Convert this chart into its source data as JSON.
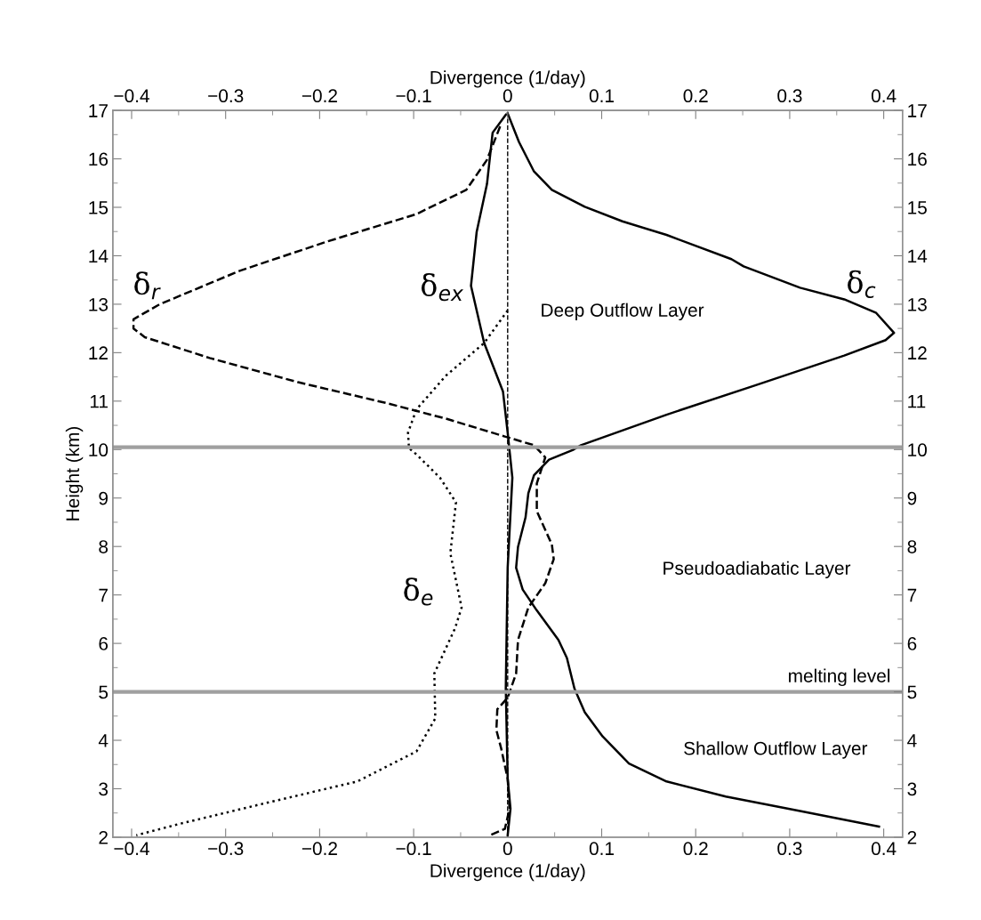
{
  "chart_data": {
    "type": "line",
    "xlabel": "Divergence (1/day)",
    "x2label": "Divergence (1/day)",
    "ylabel": "Height (km)",
    "xlim": [
      -0.42,
      0.42
    ],
    "xticks": [
      {
        "value": -0.4,
        "label": "−0.4"
      },
      {
        "value": -0.3,
        "label": "−0.3"
      },
      {
        "value": -0.2,
        "label": "−0.2"
      },
      {
        "value": -0.1,
        "label": "−0.1"
      },
      0,
      0.1,
      0.2,
      0.3,
      0.4
    ],
    "x2lim": [
      -0.42,
      0.42
    ],
    "x2ticks": [
      {
        "value": -0.4,
        "label": "−0.4"
      },
      {
        "value": -0.3,
        "label": "−0.3"
      },
      {
        "value": -0.2,
        "label": "−0.2"
      },
      {
        "value": -0.1,
        "label": "−0.1"
      },
      0,
      0.1,
      0.2,
      0.3,
      0.4
    ],
    "ylim": [
      2,
      17
    ],
    "yticks": [
      2,
      3,
      4,
      5,
      6,
      7,
      8,
      9,
      10,
      11,
      12,
      13,
      14,
      15,
      16,
      17
    ],
    "y2lim": [
      2,
      17
    ],
    "y2ticks": [
      2,
      3,
      4,
      5,
      6,
      7,
      8,
      9,
      10,
      11,
      12,
      13,
      14,
      15,
      16,
      17
    ],
    "grid": false,
    "legend": false,
    "series": [
      {
        "color": "#000000",
        "line_style": "solid",
        "x": [
          0,
          0.012,
          0.028,
          0.047,
          0.082,
          0.122,
          0.169,
          0.238,
          0.251,
          0.311,
          0.358,
          0.392,
          0.411,
          0.402,
          0.358,
          0.264,
          0.169,
          0.078,
          0.069,
          0.044,
          0.028,
          0.022,
          0.019,
          0.011,
          0.009,
          0.016,
          0.031,
          0.054,
          0.063,
          0.071,
          0.082,
          0.101,
          0.129,
          0.169,
          0.232,
          0.311,
          0.395
        ],
        "values": [
          16.94,
          16.35,
          15.74,
          15.36,
          15.01,
          14.71,
          14.43,
          13.93,
          13.78,
          13.34,
          13.1,
          12.82,
          12.41,
          12.26,
          11.94,
          11.33,
          10.72,
          10.09,
          9.99,
          9.79,
          9.47,
          9.1,
          8.6,
          7.99,
          7.56,
          7.11,
          6.68,
          6.07,
          5.7,
          5.07,
          4.58,
          4.08,
          3.52,
          3.15,
          2.84,
          2.54,
          2.22
        ]
      },
      {
        "color": "#000000",
        "line_style": "dashed",
        "x": [
          -0.008,
          -0.022,
          -0.044,
          -0.097,
          -0.191,
          -0.285,
          -0.37,
          -0.398,
          -0.398,
          -0.386,
          -0.317,
          -0.223,
          -0.129,
          -0.066,
          -0.003,
          0.028,
          0.04,
          0.031,
          0.031,
          0.047,
          0.049,
          0.04,
          0.022,
          0.011,
          0.009,
          0,
          -0.011,
          -0.012,
          -0.007,
          0,
          0.002,
          -0.003,
          -0.019
        ],
        "values": [
          16.67,
          15.98,
          15.36,
          14.86,
          14.3,
          13.69,
          13.0,
          12.69,
          12.5,
          12.32,
          11.89,
          11.39,
          10.96,
          10.64,
          10.27,
          10.09,
          9.84,
          9.3,
          8.73,
          8.04,
          7.74,
          7.24,
          6.74,
          6.07,
          5.38,
          4.88,
          4.64,
          4.21,
          3.84,
          3.21,
          2.59,
          2.17,
          2.04
        ]
      },
      {
        "color": "#000000",
        "line_style": "solid",
        "x": [
          -0.002,
          -0.016,
          -0.022,
          -0.033,
          -0.039,
          -0.025,
          -0.005,
          0,
          0.005,
          0,
          -0.002,
          0,
          0.003,
          0
        ],
        "values": [
          16.91,
          16.54,
          15.48,
          14.49,
          13.38,
          12.2,
          11.2,
          10.35,
          9.42,
          7.56,
          5.07,
          3.21,
          2.59,
          2.04
        ]
      },
      {
        "color": "#000000",
        "line_style": "dotted",
        "x": [
          0,
          -0.025,
          -0.066,
          -0.097,
          -0.106,
          -0.105,
          -0.097,
          -0.072,
          -0.055,
          -0.061,
          -0.049,
          -0.056,
          -0.078,
          -0.077,
          -0.097,
          -0.16,
          -0.254,
          -0.348,
          -0.395
        ],
        "values": [
          12.87,
          12.2,
          11.52,
          10.83,
          10.35,
          10.03,
          9.9,
          9.42,
          8.91,
          7.86,
          6.74,
          6.31,
          5.38,
          4.45,
          3.77,
          3.15,
          2.72,
          2.28,
          2.04
        ]
      }
    ],
    "ref_lines": [
      {
        "axis": "x",
        "value": 0,
        "color": "#000000",
        "line_style": "dashed"
      },
      {
        "axis": "y",
        "value": 10.05,
        "color": "#a0a0a0",
        "line_style": "solid"
      },
      {
        "axis": "y",
        "value": 5,
        "color": "#a0a0a0",
        "line_style": "solid",
        "label": "melting level"
      }
    ],
    "annotations": [
      "δ$_{r}$",
      "δ$_{ex}$",
      "δ$_{c}$",
      "δ$_{e}$",
      "Deep Outflow Layer",
      "Pseudoadiabatic Layer",
      "Shallow Outflow Layer"
    ]
  }
}
